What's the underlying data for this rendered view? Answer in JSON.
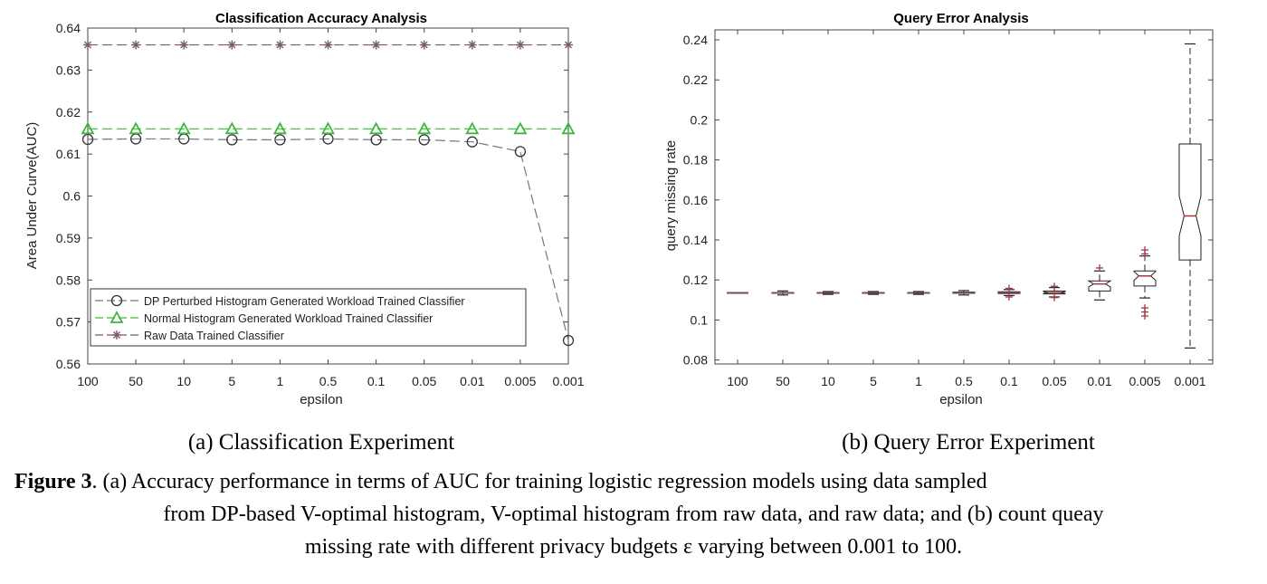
{
  "chart_data": [
    {
      "type": "line",
      "title": "Classification Accuracy Analysis",
      "xlabel": "epsilon",
      "ylabel": "Area Under Curve(AUC)",
      "categories": [
        "100",
        "50",
        "10",
        "5",
        "1",
        "0.5",
        "0.1",
        "0.05",
        "0.01",
        "0.005",
        "0.001"
      ],
      "ylim": [
        0.56,
        0.64
      ],
      "yticks": [
        "0.56",
        "0.57",
        "0.58",
        "0.59",
        "0.6",
        "0.61",
        "0.62",
        "0.63",
        "0.64"
      ],
      "grid": false,
      "legend_position": "bottom-left",
      "series": [
        {
          "name": "DP Perturbed Histogram Generated Workload Trained Classifier",
          "marker": "circle",
          "color": "#777777",
          "values": [
            0.6135,
            0.6136,
            0.6136,
            0.6134,
            0.6134,
            0.6136,
            0.6134,
            0.6134,
            0.6129,
            0.6106,
            0.5656
          ]
        },
        {
          "name": "Normal Histogram Generated Workload Trained Classifier",
          "marker": "triangle",
          "color": "#3cb83c",
          "values": [
            0.616,
            0.616,
            0.616,
            0.616,
            0.616,
            0.616,
            0.616,
            0.616,
            0.616,
            0.616,
            0.616
          ]
        },
        {
          "name": "Raw Data Trained Classifier",
          "marker": "asterisk",
          "color": "#7a5a6a",
          "values": [
            0.636,
            0.636,
            0.636,
            0.636,
            0.636,
            0.636,
            0.636,
            0.636,
            0.636,
            0.636,
            0.636
          ]
        }
      ]
    },
    {
      "type": "box",
      "title": "Query Error Analysis",
      "xlabel": "epsilon",
      "ylabel": "query missing rate",
      "categories": [
        "100",
        "50",
        "10",
        "5",
        "1",
        "0.5",
        "0.1",
        "0.05",
        "0.01",
        "0.005",
        "0.001"
      ],
      "ylim": [
        0.078,
        0.245
      ],
      "yticks": [
        "0.08",
        "0.1",
        "0.12",
        "0.14",
        "0.16",
        "0.18",
        "0.2",
        "0.22",
        "0.24"
      ],
      "grid": false,
      "boxes": [
        {
          "min": 0.1135,
          "q1": 0.1135,
          "median": 0.1135,
          "q3": 0.1135,
          "max": 0.1135,
          "outliers": []
        },
        {
          "min": 0.1125,
          "q1": 0.1133,
          "median": 0.1135,
          "q3": 0.1137,
          "max": 0.1145,
          "outliers": []
        },
        {
          "min": 0.1128,
          "q1": 0.1133,
          "median": 0.1135,
          "q3": 0.1137,
          "max": 0.1142,
          "outliers": []
        },
        {
          "min": 0.1128,
          "q1": 0.1133,
          "median": 0.1135,
          "q3": 0.1137,
          "max": 0.1142,
          "outliers": []
        },
        {
          "min": 0.1128,
          "q1": 0.1133,
          "median": 0.1135,
          "q3": 0.1137,
          "max": 0.1142,
          "outliers": []
        },
        {
          "min": 0.1125,
          "q1": 0.1133,
          "median": 0.1136,
          "q3": 0.1139,
          "max": 0.1147,
          "outliers": []
        },
        {
          "min": 0.1122,
          "q1": 0.1132,
          "median": 0.1136,
          "q3": 0.1141,
          "max": 0.1152,
          "outliers": [
            0.1115,
            0.1158
          ]
        },
        {
          "min": 0.1115,
          "q1": 0.113,
          "median": 0.1137,
          "q3": 0.1145,
          "max": 0.1162,
          "outliers": [
            0.1112,
            0.1168
          ]
        },
        {
          "min": 0.11,
          "q1": 0.1145,
          "median": 0.118,
          "q3": 0.1195,
          "max": 0.1245,
          "outliers": [
            0.126
          ]
        },
        {
          "min": 0.111,
          "q1": 0.117,
          "median": 0.122,
          "q3": 0.1245,
          "max": 0.132,
          "outliers": [
            0.102,
            0.104,
            0.106,
            0.133,
            0.135
          ]
        },
        {
          "min": 0.086,
          "q1": 0.13,
          "median": 0.152,
          "q3": 0.188,
          "max": 0.238,
          "outliers": []
        }
      ]
    }
  ],
  "subcaptions": {
    "a": "(a)  Classification Experiment",
    "b": "(b) Query Error Experiment"
  },
  "caption": {
    "label": "Figure 3",
    "line1": ".  (a) Accuracy performance in terms of AUC for training logistic regression models using data sampled",
    "line2": "from DP-based V-optimal histogram, V-optimal histogram from raw data, and raw data; and (b) count queay",
    "line3": "missing rate with different privacy budgets  ε  varying between 0.001 to 100."
  }
}
